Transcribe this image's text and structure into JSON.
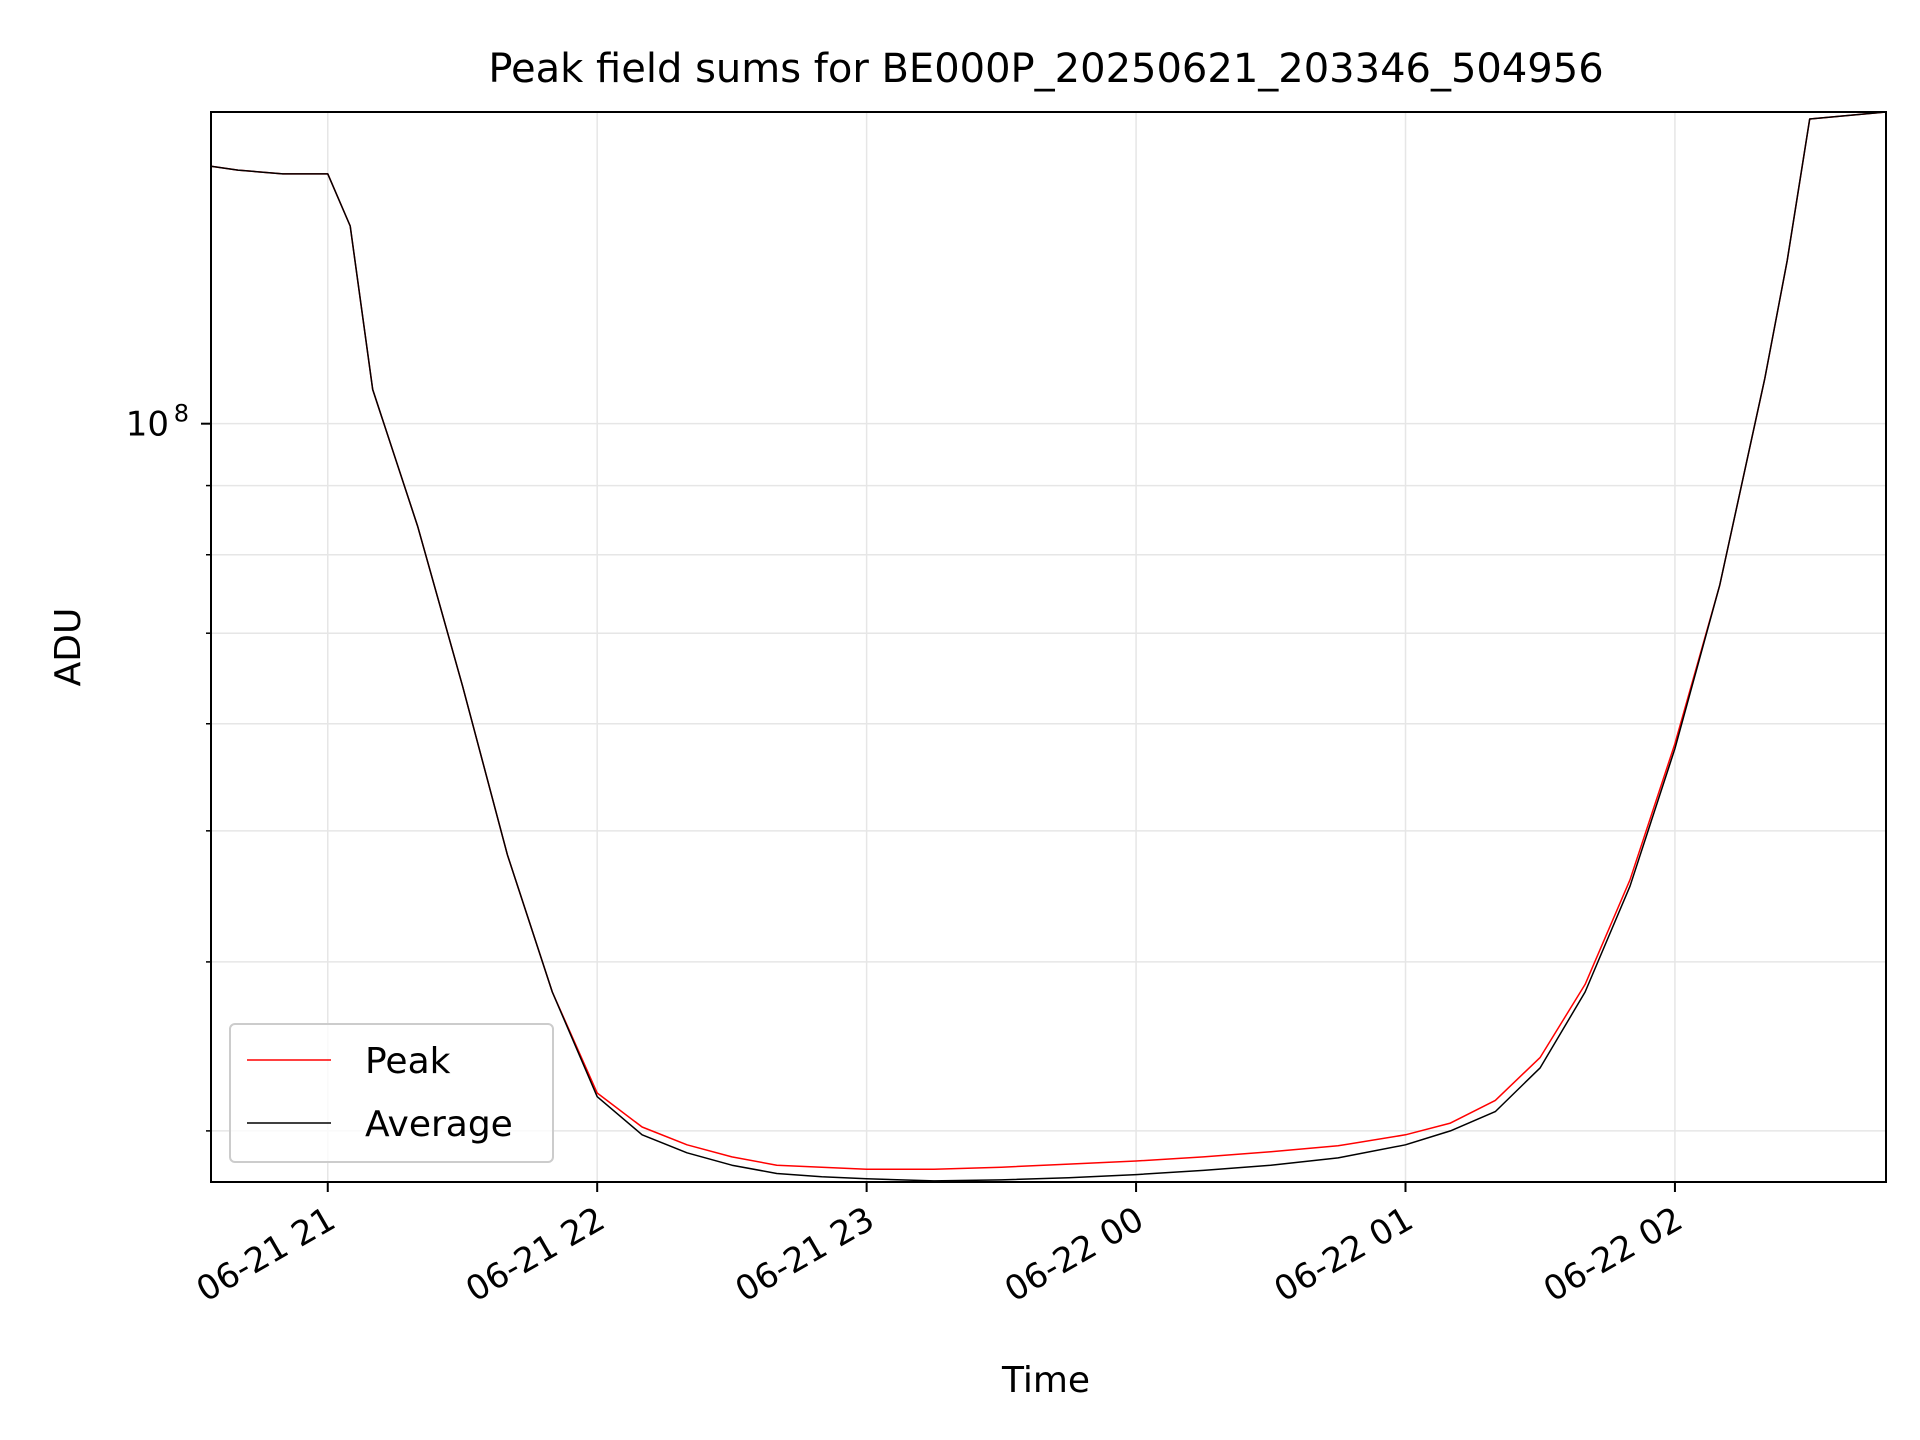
{
  "chart_data": {
    "type": "line",
    "title": "Peak field sums for BE000P_20250621_203346_504956",
    "xlabel": "Time",
    "ylabel": "ADU",
    "y_scale": "log",
    "ylim": [
      27500000.0,
      170000000.0
    ],
    "x_range": [
      "2025-06-21T20:34",
      "2025-06-22T02:47"
    ],
    "x_ticks": [
      {
        "time": "2025-06-21T21:00",
        "label": "06-21 21"
      },
      {
        "time": "2025-06-21T22:00",
        "label": "06-21 22"
      },
      {
        "time": "2025-06-21T23:00",
        "label": "06-21 23"
      },
      {
        "time": "2025-06-22T00:00",
        "label": "06-22 00"
      },
      {
        "time": "2025-06-22T01:00",
        "label": "06-22 01"
      },
      {
        "time": "2025-06-22T02:00",
        "label": "06-22 02"
      }
    ],
    "y_major_ticks": [
      {
        "value": 100000000,
        "base": "10",
        "exponent": "8"
      }
    ],
    "y_minor_ticks": [
      30000000,
      40000000,
      50000000,
      60000000,
      70000000,
      80000000,
      90000000
    ],
    "grid": true,
    "legend_position": "lower-left",
    "series": [
      {
        "name": "Peak",
        "color": "#ff0000",
        "x": [
          "2025-06-21T20:34",
          "2025-06-21T20:40",
          "2025-06-21T20:50",
          "2025-06-21T21:00",
          "2025-06-21T21:05",
          "2025-06-21T21:10",
          "2025-06-21T21:20",
          "2025-06-21T21:30",
          "2025-06-21T21:40",
          "2025-06-21T21:50",
          "2025-06-21T22:00",
          "2025-06-21T22:10",
          "2025-06-21T22:20",
          "2025-06-21T22:30",
          "2025-06-21T22:40",
          "2025-06-21T22:50",
          "2025-06-21T23:00",
          "2025-06-21T23:15",
          "2025-06-21T23:30",
          "2025-06-21T23:45",
          "2025-06-22T00:00",
          "2025-06-22T00:15",
          "2025-06-22T00:30",
          "2025-06-22T00:45",
          "2025-06-22T01:00",
          "2025-06-22T01:10",
          "2025-06-22T01:20",
          "2025-06-22T01:30",
          "2025-06-22T01:40",
          "2025-06-22T01:50",
          "2025-06-22T02:00",
          "2025-06-22T02:10",
          "2025-06-22T02:20",
          "2025-06-22T02:25",
          "2025-06-22T02:30",
          "2025-06-22T02:47"
        ],
        "y": [
          155000000,
          154000000,
          153000000,
          153000000,
          140000000,
          106000000,
          84000000,
          64000000,
          48000000,
          38000000,
          32000000,
          30200000,
          29300000,
          28700000,
          28300000,
          28200000,
          28100000,
          28100000,
          28200000,
          28350000,
          28500000,
          28700000,
          28950000,
          29250000,
          29800000,
          30400000,
          31600000,
          34000000,
          38500000,
          46000000,
          58000000,
          76000000,
          108000000,
          132000000,
          168000000,
          170000000
        ]
      },
      {
        "name": "Average",
        "color": "#000000",
        "x": [
          "2025-06-21T20:34",
          "2025-06-21T20:40",
          "2025-06-21T20:50",
          "2025-06-21T21:00",
          "2025-06-21T21:05",
          "2025-06-21T21:10",
          "2025-06-21T21:20",
          "2025-06-21T21:30",
          "2025-06-21T21:40",
          "2025-06-21T21:50",
          "2025-06-21T22:00",
          "2025-06-21T22:10",
          "2025-06-21T22:20",
          "2025-06-21T22:30",
          "2025-06-21T22:40",
          "2025-06-21T22:50",
          "2025-06-21T23:00",
          "2025-06-21T23:15",
          "2025-06-21T23:30",
          "2025-06-21T23:45",
          "2025-06-22T00:00",
          "2025-06-22T00:15",
          "2025-06-22T00:30",
          "2025-06-22T00:45",
          "2025-06-22T01:00",
          "2025-06-22T01:10",
          "2025-06-22T01:20",
          "2025-06-22T01:30",
          "2025-06-22T01:40",
          "2025-06-22T01:50",
          "2025-06-22T02:00",
          "2025-06-22T02:10",
          "2025-06-22T02:20",
          "2025-06-22T02:25",
          "2025-06-22T02:30",
          "2025-06-22T02:47"
        ],
        "y": [
          155000000,
          154000000,
          153000000,
          153000000,
          140000000,
          106000000,
          84000000,
          64000000,
          48000000,
          38000000,
          31800000,
          29800000,
          28900000,
          28300000,
          27900000,
          27750000,
          27650000,
          27550000,
          27600000,
          27700000,
          27850000,
          28050000,
          28300000,
          28650000,
          29300000,
          30000000,
          31000000,
          33400000,
          38000000,
          45500000,
          57500000,
          76000000,
          108000000,
          132000000,
          168000000,
          170000000
        ]
      }
    ]
  }
}
